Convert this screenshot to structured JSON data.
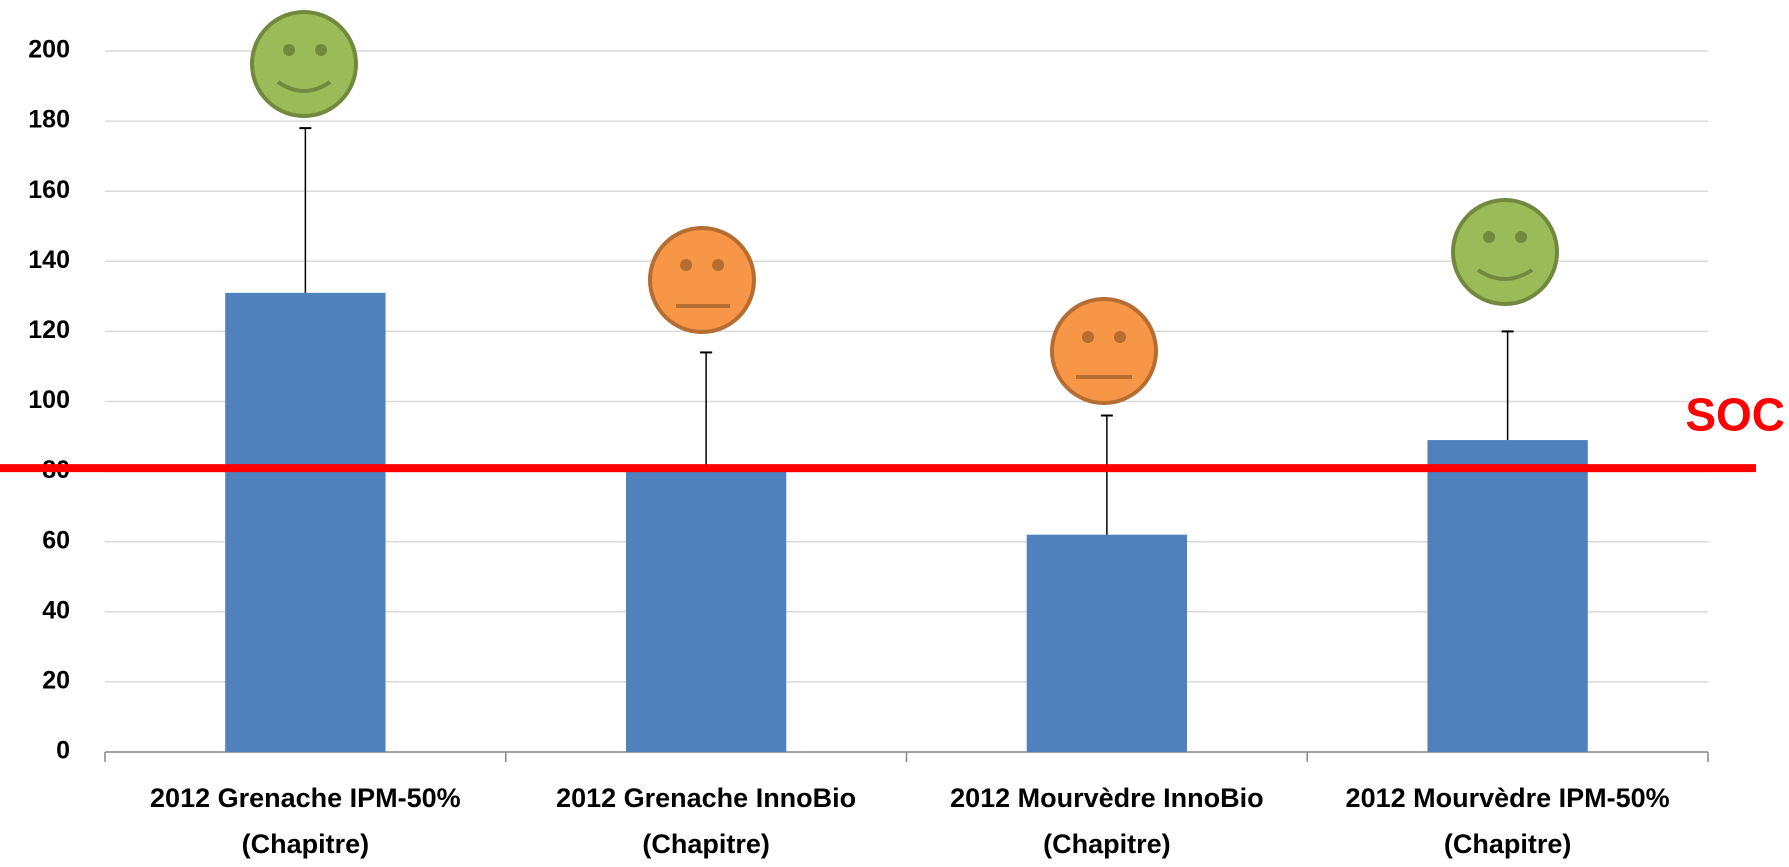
{
  "chart_data": {
    "type": "bar",
    "categories": [
      "2012 Grenache IPM-50% (Chapitre)",
      "2012 Grenache InnoBio (Chapitre)",
      "2012 Mourvèdre InnoBio (Chapitre)",
      "2012 Mourvèdre IPM-50% (Chapitre)"
    ],
    "values": [
      131,
      82,
      62,
      89
    ],
    "errors": [
      47,
      32,
      34,
      31
    ],
    "color": "#4f81bd",
    "ylim": [
      0,
      200
    ],
    "yticks": [
      0,
      20,
      40,
      60,
      80,
      100,
      120,
      140,
      160,
      180,
      200
    ],
    "grid": true,
    "reference_line": {
      "value": 81,
      "label": "SOC",
      "color": "#ff0000"
    }
  }
}
